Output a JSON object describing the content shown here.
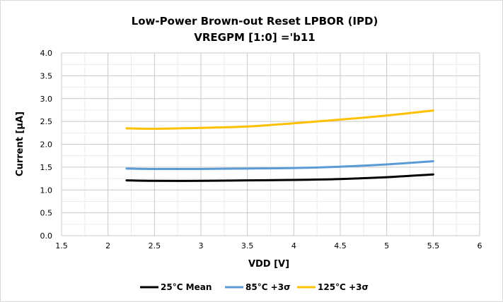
{
  "chart_data": {
    "type": "line",
    "title": "Low-Power Brown-out Reset LPBOR (IPD)",
    "subtitle": "VREGPM [1:0] ='b11",
    "xlabel": "VDD [V]",
    "ylabel": "Current [µA]",
    "xlim": [
      1.5,
      6
    ],
    "ylim": [
      0,
      4
    ],
    "xticks": [
      1.5,
      2,
      2.5,
      3,
      3.5,
      4,
      4.5,
      5,
      5.5,
      6
    ],
    "yticks": [
      0.0,
      0.5,
      1.0,
      1.5,
      2.0,
      2.5,
      3.0,
      3.5,
      4.0
    ],
    "xtick_labels": [
      "1.5",
      "2",
      "2.5",
      "3",
      "3.5",
      "4",
      "4.5",
      "5",
      "5.5",
      "6"
    ],
    "ytick_labels": [
      "0.0",
      "0.5",
      "1.0",
      "1.5",
      "2.0",
      "2.5",
      "3.0",
      "3.5",
      "4.0"
    ],
    "grid": true,
    "legend_position": "bottom",
    "x": [
      2.2,
      2.5,
      3.0,
      3.5,
      4.0,
      4.5,
      5.0,
      5.5
    ],
    "series": [
      {
        "name": "25°C Mean",
        "color": "#000000",
        "values": [
          1.21,
          1.2,
          1.2,
          1.21,
          1.22,
          1.24,
          1.28,
          1.34
        ]
      },
      {
        "name": "85°C +3σ",
        "color": "#5b9bd5",
        "values": [
          1.47,
          1.46,
          1.46,
          1.47,
          1.48,
          1.51,
          1.56,
          1.63
        ]
      },
      {
        "name": "125°C +3σ",
        "color": "#ffc000",
        "values": [
          2.35,
          2.34,
          2.36,
          2.39,
          2.46,
          2.54,
          2.63,
          2.74
        ]
      }
    ]
  }
}
